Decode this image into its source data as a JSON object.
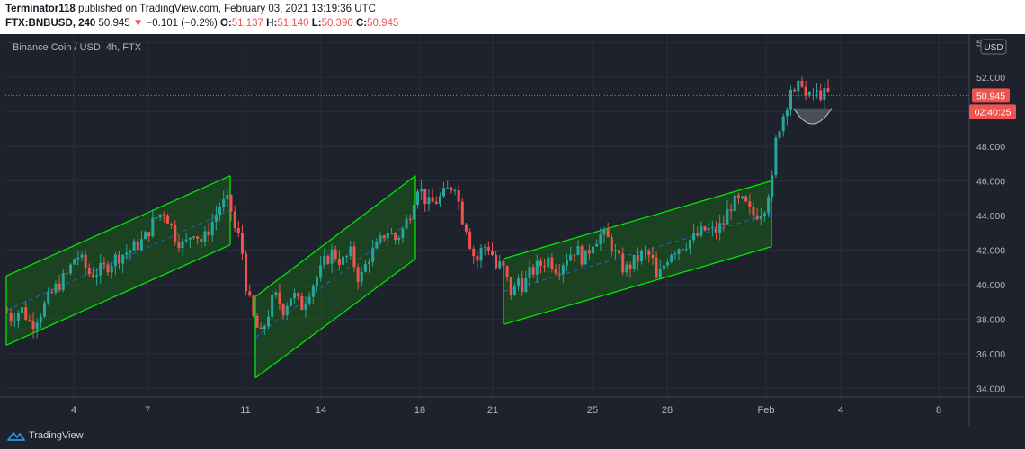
{
  "header": {
    "user": "Terminator118",
    "published": "published on TradingView.com, February 03, 2021 13:19:36 UTC",
    "ticker": "FTX:BNBUSD, 240",
    "last": "50.945",
    "change_arrow": "▼",
    "change": "−0.101 (−0.2%)",
    "open_label": "O:",
    "open": "51.137",
    "high_label": "H:",
    "high": "51.140",
    "low_label": "L:",
    "low": "50.390",
    "close_label": "C:",
    "close": "50.945"
  },
  "chart": {
    "symbol_label": "Binance Coin / USD, 4h, FTX",
    "currency_label": "USD",
    "price_tag": "50.945",
    "countdown_tag": "02:40:25",
    "brand": "TradingView"
  },
  "colors": {
    "background": "#1e222d",
    "up": "#26a69a",
    "down": "#ef5350",
    "channel": "#00e600",
    "channel_fill": "#1a5e1a",
    "grid": "#2a2e39"
  },
  "chart_data": {
    "type": "candlestick",
    "y_range": [
      33.5,
      54.5
    ],
    "y_ticks": [
      "54.000",
      "52.000",
      "50.000",
      "48.000",
      "46.000",
      "44.000",
      "42.000",
      "40.000",
      "38.000",
      "36.000",
      "34.000"
    ],
    "x_ticks": [
      "4",
      "7",
      "11",
      "14",
      "18",
      "21",
      "25",
      "28",
      "Feb",
      "4",
      "8"
    ],
    "last_price": 50.945,
    "ohlc_last": {
      "open": 51.137,
      "high": 51.14,
      "low": 50.39,
      "close": 50.945
    },
    "price_path": [
      [
        0,
        39.0
      ],
      [
        12,
        38.1
      ],
      [
        24,
        38.6
      ],
      [
        35,
        37.7
      ],
      [
        45,
        38.4
      ],
      [
        60,
        39.7
      ],
      [
        75,
        40.6
      ],
      [
        85,
        41.8
      ],
      [
        100,
        40.6
      ],
      [
        115,
        40.9
      ],
      [
        130,
        41.6
      ],
      [
        145,
        42.0
      ],
      [
        160,
        42.6
      ],
      [
        172,
        43.8
      ],
      [
        183,
        44.3
      ],
      [
        195,
        42.8
      ],
      [
        205,
        42.2
      ],
      [
        215,
        43.2
      ],
      [
        225,
        42.4
      ],
      [
        235,
        43.5
      ],
      [
        245,
        44.6
      ],
      [
        255,
        44.8
      ],
      [
        262,
        43.0
      ],
      [
        268,
        42.6
      ],
      [
        272,
        40.5
      ],
      [
        276,
        39.3
      ],
      [
        282,
        38.0
      ],
      [
        290,
        37.0
      ],
      [
        298,
        38.3
      ],
      [
        305,
        39.4
      ],
      [
        315,
        38.6
      ],
      [
        325,
        39.5
      ],
      [
        335,
        38.7
      ],
      [
        345,
        39.8
      ],
      [
        355,
        40.6
      ],
      [
        362,
        41.4
      ],
      [
        370,
        41.9
      ],
      [
        380,
        41.3
      ],
      [
        390,
        41.8
      ],
      [
        400,
        40.2
      ],
      [
        410,
        41.6
      ],
      [
        420,
        42.2
      ],
      [
        430,
        43.2
      ],
      [
        440,
        42.6
      ],
      [
        448,
        43.2
      ],
      [
        455,
        44.0
      ],
      [
        460,
        45.0
      ],
      [
        464,
        45.8
      ],
      [
        470,
        45.3
      ],
      [
        476,
        44.6
      ],
      [
        484,
        44.8
      ],
      [
        492,
        45.1
      ],
      [
        500,
        45.6
      ],
      [
        507,
        45.9
      ],
      [
        512,
        44.1
      ],
      [
        518,
        43.5
      ],
      [
        524,
        42.1
      ],
      [
        530,
        41.3
      ],
      [
        536,
        42.1
      ],
      [
        542,
        42.3
      ],
      [
        548,
        41.7
      ],
      [
        552,
        40.9
      ],
      [
        558,
        41.2
      ],
      [
        564,
        40.2
      ],
      [
        570,
        39.3
      ],
      [
        576,
        40.4
      ],
      [
        582,
        39.9
      ],
      [
        590,
        40.7
      ],
      [
        600,
        41.1
      ],
      [
        610,
        41.5
      ],
      [
        620,
        40.9
      ],
      [
        630,
        41.6
      ],
      [
        640,
        42.1
      ],
      [
        650,
        41.4
      ],
      [
        660,
        42.6
      ],
      [
        670,
        42.9
      ],
      [
        678,
        42.5
      ],
      [
        686,
        41.6
      ],
      [
        695,
        40.8
      ],
      [
        705,
        41.3
      ],
      [
        715,
        41.8
      ],
      [
        725,
        41.6
      ],
      [
        730,
        40.2
      ],
      [
        738,
        41.1
      ],
      [
        745,
        41.9
      ],
      [
        755,
        42.2
      ],
      [
        765,
        42.5
      ],
      [
        775,
        42.8
      ],
      [
        785,
        43.2
      ],
      [
        795,
        43.0
      ],
      [
        805,
        43.6
      ],
      [
        812,
        44.6
      ],
      [
        820,
        44.8
      ],
      [
        828,
        44.7
      ],
      [
        836,
        44.0
      ],
      [
        844,
        44.2
      ],
      [
        850,
        44.5
      ],
      [
        855,
        45.5
      ],
      [
        859,
        46.0
      ],
      [
        863,
        48.3
      ],
      [
        867,
        49.2
      ],
      [
        871,
        49.8
      ],
      [
        875,
        50.5
      ],
      [
        879,
        51.5
      ],
      [
        883,
        50.8
      ],
      [
        887,
        51.2
      ],
      [
        891,
        52.1
      ],
      [
        895,
        51.0
      ],
      [
        899,
        50.5
      ],
      [
        903,
        51.3
      ],
      [
        907,
        50.9
      ],
      [
        911,
        51.2
      ],
      [
        915,
        50.9
      ],
      [
        919,
        51.1
      ],
      [
        923,
        50.945
      ]
    ],
    "channels": [
      {
        "upper": [
          [
            7,
            40.5
          ],
          [
            256,
            46.3
          ]
        ],
        "lower": [
          [
            7,
            36.5
          ],
          [
            256,
            42.3
          ]
        ]
      },
      {
        "upper": [
          [
            284,
            39.3
          ],
          [
            462,
            46.3
          ]
        ],
        "lower": [
          [
            284,
            34.6
          ],
          [
            462,
            41.5
          ]
        ]
      },
      {
        "upper": [
          [
            560,
            41.5
          ],
          [
            858,
            46.0
          ]
        ],
        "lower": [
          [
            560,
            37.7
          ],
          [
            858,
            42.2
          ]
        ]
      }
    ]
  }
}
